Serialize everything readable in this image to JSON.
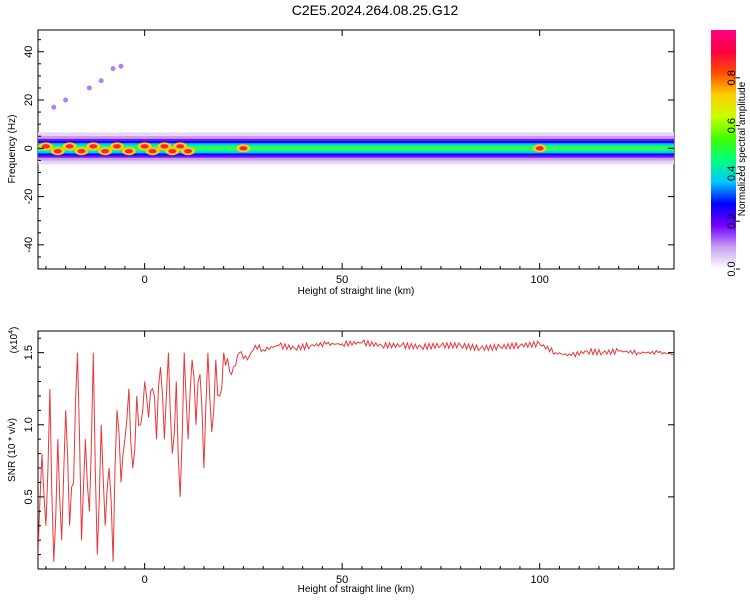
{
  "title": "C2E5.2024.264.08.25.G12",
  "chart_data": [
    {
      "type": "heatmap",
      "xlabel": "Height of straight line (km)",
      "ylabel": "Frequency (Hz)",
      "xlim": [
        -27,
        134
      ],
      "ylim": [
        -50,
        49
      ],
      "xticks": [
        0,
        50,
        100
      ],
      "yticks": [
        40,
        20,
        0,
        -20,
        -40
      ],
      "ytick_labels": [
        "40",
        "20",
        "0",
        "-20",
        "-40"
      ],
      "band_center_hz": 0,
      "band_halfwidth_hz": 3,
      "hot_spots_km": [
        -25,
        -22,
        -19,
        -16,
        -13,
        -10,
        -7,
        -4,
        0,
        2,
        5,
        7,
        9,
        11,
        25,
        100
      ],
      "scatter_points": [
        {
          "x": -23,
          "y": 17
        },
        {
          "x": -20,
          "y": 20
        },
        {
          "x": -14,
          "y": 25
        },
        {
          "x": -11,
          "y": 28
        },
        {
          "x": -8,
          "y": 33
        },
        {
          "x": -6,
          "y": 34
        }
      ],
      "colorbar": {
        "label": "Normalized spectral amplitude",
        "range": [
          0,
          1
        ],
        "ticks": [
          0.0,
          0.2,
          0.4,
          0.6,
          0.8
        ],
        "tick_labels": [
          "0.0",
          "0.2",
          "0.4",
          "0.6",
          "0.8"
        ],
        "colors": [
          "#ffffff",
          "#c8a0f0",
          "#7000ff",
          "#0000ff",
          "#00c8ff",
          "#00ff80",
          "#40ff00",
          "#c8ff00",
          "#ffd000",
          "#ff5000",
          "#ff0040",
          "#ff0080"
        ]
      }
    },
    {
      "type": "line",
      "xlabel": "Height of straight line (km)",
      "ylabel": "SNR (10 * v/v)",
      "y_multiplier": "(x10",
      "y_multiplier_exp": "4",
      "y_multiplier_close": ")",
      "xlim": [
        -27,
        134
      ],
      "ylim": [
        0,
        1.65
      ],
      "xticks": [
        0,
        50,
        100
      ],
      "yticks": [
        0.5,
        1.0,
        1.5
      ],
      "ytick_labels": [
        "0.5",
        "1.0",
        "1.5"
      ],
      "color": "#e8383a",
      "x": [
        -27,
        -26,
        -25,
        -24,
        -23,
        -22,
        -21,
        -20,
        -19,
        -18,
        -17,
        -16,
        -15,
        -14,
        -13,
        -12,
        -11,
        -10,
        -9,
        -8,
        -7,
        -6,
        -5,
        -4,
        -3,
        -2,
        -1,
        0,
        1,
        2,
        3,
        4,
        5,
        6,
        7,
        8,
        9,
        10,
        11,
        12,
        13,
        14,
        15,
        16,
        17,
        18,
        19,
        20,
        22,
        24,
        26,
        28,
        30,
        34,
        38,
        42,
        46,
        50,
        55,
        60,
        65,
        70,
        75,
        80,
        85,
        90,
        95,
        100,
        104,
        108,
        112,
        116,
        120,
        125,
        130,
        134
      ],
      "values": [
        0.1,
        0.8,
        0.3,
        1.25,
        0.05,
        0.9,
        0.2,
        1.1,
        0.3,
        0.6,
        1.5,
        0.2,
        0.9,
        0.4,
        1.5,
        0.1,
        1.0,
        0.3,
        0.7,
        0.05,
        1.1,
        0.6,
        0.9,
        1.25,
        0.7,
        1.2,
        1.0,
        1.3,
        1.05,
        1.25,
        0.9,
        1.4,
        0.9,
        1.5,
        0.8,
        1.3,
        0.5,
        1.5,
        0.9,
        1.45,
        1.0,
        1.35,
        0.7,
        1.5,
        0.95,
        1.45,
        1.2,
        1.5,
        1.35,
        1.5,
        1.45,
        1.55,
        1.52,
        1.55,
        1.53,
        1.55,
        1.56,
        1.56,
        1.57,
        1.55,
        1.55,
        1.54,
        1.55,
        1.55,
        1.53,
        1.54,
        1.55,
        1.56,
        1.5,
        1.48,
        1.51,
        1.5,
        1.51,
        1.5,
        1.5,
        1.49
      ]
    }
  ]
}
